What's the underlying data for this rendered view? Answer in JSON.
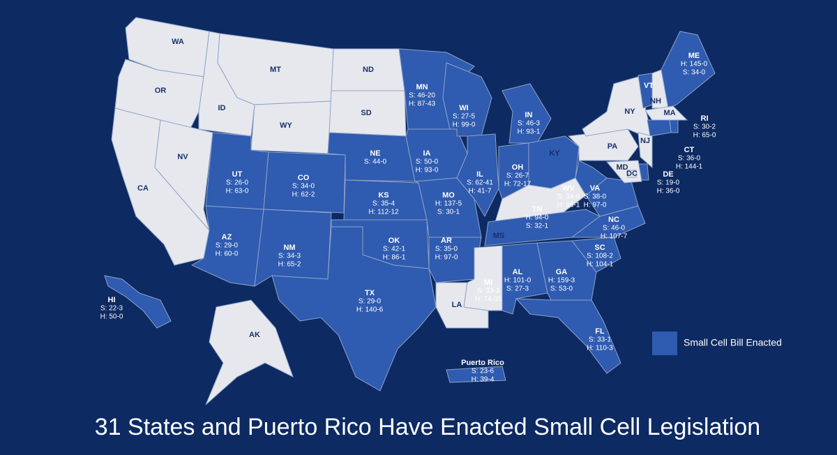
{
  "title": "31 States and Puerto Rico Have Enacted Small Cell Legislation",
  "legend": {
    "label": "Small Cell Bill Enacted",
    "color": "#2f5bb0"
  },
  "not_enacted_color": "#e6e8ee",
  "states": [
    {
      "abbr": "WA",
      "enacted": false,
      "lines": []
    },
    {
      "abbr": "OR",
      "enacted": false,
      "lines": []
    },
    {
      "abbr": "CA",
      "enacted": false,
      "lines": []
    },
    {
      "abbr": "NV",
      "enacted": false,
      "lines": []
    },
    {
      "abbr": "ID",
      "enacted": false,
      "lines": []
    },
    {
      "abbr": "MT",
      "enacted": false,
      "lines": []
    },
    {
      "abbr": "WY",
      "enacted": false,
      "lines": []
    },
    {
      "abbr": "UT",
      "enacted": true,
      "lines": [
        "S: 26-0",
        "H: 63-0"
      ]
    },
    {
      "abbr": "CO",
      "enacted": true,
      "lines": [
        "S: 34-0",
        "H: 62-2"
      ]
    },
    {
      "abbr": "AZ",
      "enacted": true,
      "lines": [
        "S: 29-0",
        "H: 60-0"
      ]
    },
    {
      "abbr": "NM",
      "enacted": true,
      "lines": [
        "S: 34-3",
        "H: 65-2"
      ]
    },
    {
      "abbr": "ND",
      "enacted": false,
      "lines": []
    },
    {
      "abbr": "SD",
      "enacted": false,
      "lines": []
    },
    {
      "abbr": "NE",
      "enacted": true,
      "lines": [
        "S: 44-0"
      ]
    },
    {
      "abbr": "KS",
      "enacted": true,
      "lines": [
        "S: 35-4",
        "H: 112-12"
      ]
    },
    {
      "abbr": "OK",
      "enacted": true,
      "lines": [
        "S: 42-1",
        "H: 86-1"
      ]
    },
    {
      "abbr": "TX",
      "enacted": true,
      "lines": [
        "S: 29-0",
        "H: 140-6"
      ]
    },
    {
      "abbr": "MN",
      "enacted": true,
      "lines": [
        "S: 46-20",
        "H: 87-43"
      ]
    },
    {
      "abbr": "IA",
      "enacted": true,
      "lines": [
        "S: 50-0",
        "H: 93-0"
      ]
    },
    {
      "abbr": "MO",
      "enacted": true,
      "lines": [
        "H: 137-5",
        "S: 30-1"
      ]
    },
    {
      "abbr": "AR",
      "enacted": true,
      "lines": [
        "S: 35-0",
        "H: 97-0"
      ]
    },
    {
      "abbr": "LA",
      "enacted": false,
      "lines": []
    },
    {
      "abbr": "WI",
      "enacted": true,
      "lines": [
        "S: 27-5",
        "H: 99-0"
      ]
    },
    {
      "abbr": "IL",
      "enacted": true,
      "lines": [
        "S: 62-41",
        "H: 41-7"
      ]
    },
    {
      "abbr": "MI",
      "enacted": true,
      "lines": [
        "S: 33-3",
        "H: 74-35"
      ]
    },
    {
      "abbr": "IN",
      "enacted": true,
      "lines": [
        "S: 46-3",
        "H: 93-1"
      ]
    },
    {
      "abbr": "OH",
      "enacted": true,
      "lines": [
        "S: 26-7",
        "H: 72-17"
      ]
    },
    {
      "abbr": "KY",
      "enacted": false,
      "lines": []
    },
    {
      "abbr": "TN",
      "enacted": true,
      "lines": [
        "H: 94-0",
        "S: 32-1"
      ]
    },
    {
      "abbr": "MS",
      "enacted": false,
      "lines": []
    },
    {
      "abbr": "AL",
      "enacted": true,
      "lines": [
        "H: 101-0",
        "S: 27-3"
      ]
    },
    {
      "abbr": "GA",
      "enacted": true,
      "lines": [
        "H: 159-3",
        "S: 53-0"
      ]
    },
    {
      "abbr": "FL",
      "enacted": true,
      "lines": [
        "S: 33-1",
        "H: 110-3"
      ]
    },
    {
      "abbr": "SC",
      "enacted": true,
      "lines": [
        "S: 108-2",
        "H: 104-1"
      ]
    },
    {
      "abbr": "NC",
      "enacted": true,
      "lines": [
        "S: 46-0",
        "H: 107-7"
      ]
    },
    {
      "abbr": "VA",
      "enacted": true,
      "lines": [
        "S: 38-0",
        "H: 97-0"
      ]
    },
    {
      "abbr": "WV",
      "enacted": true,
      "lines": [
        "S: 34-0",
        "H: 98-1"
      ]
    },
    {
      "abbr": "PA",
      "enacted": false,
      "lines": []
    },
    {
      "abbr": "NY",
      "enacted": false,
      "lines": []
    },
    {
      "abbr": "VT",
      "enacted": true,
      "lines": []
    },
    {
      "abbr": "NH",
      "enacted": false,
      "lines": []
    },
    {
      "abbr": "ME",
      "enacted": true,
      "lines": [
        "H: 145-0",
        "S: 34-0"
      ]
    },
    {
      "abbr": "MA",
      "enacted": false,
      "lines": []
    },
    {
      "abbr": "RI",
      "enacted": true,
      "lines": [
        "S: 30-2",
        "H: 65-0"
      ]
    },
    {
      "abbr": "CT",
      "enacted": true,
      "lines": [
        "S: 36-0",
        "H: 144-1"
      ]
    },
    {
      "abbr": "NJ",
      "enacted": false,
      "lines": []
    },
    {
      "abbr": "DE",
      "enacted": true,
      "lines": [
        "S: 19-0",
        "H: 36-0"
      ]
    },
    {
      "abbr": "MD",
      "enacted": false,
      "lines": []
    },
    {
      "abbr": "DC",
      "enacted": false,
      "lines": []
    },
    {
      "abbr": "HI",
      "enacted": true,
      "lines": [
        "S: 22-3",
        "H: 50-0"
      ]
    },
    {
      "abbr": "AK",
      "enacted": false,
      "lines": []
    },
    {
      "abbr": "Puerto Rico",
      "enacted": true,
      "lines": [
        "S: 23-6",
        "H: 39-4"
      ]
    }
  ]
}
